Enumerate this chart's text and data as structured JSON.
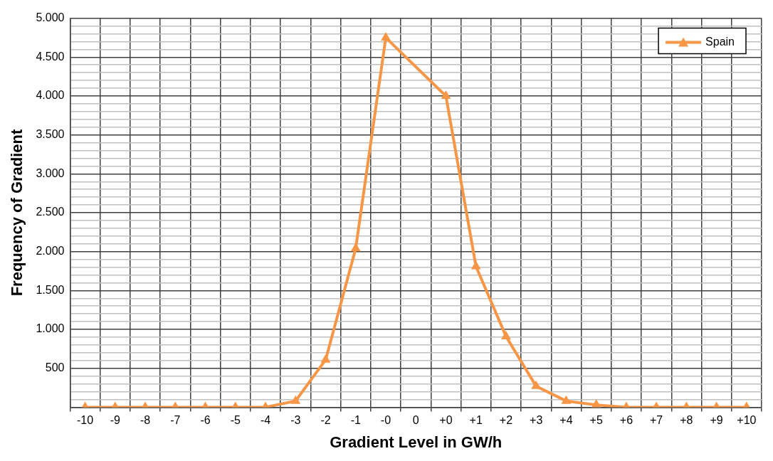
{
  "chart_data": {
    "type": "line",
    "xlabel": "Gradient Level in GW/h",
    "ylabel": "Frequency of Gradient",
    "categories": [
      "-10",
      "-9",
      "-8",
      "-7",
      "-6",
      "-5",
      "-4",
      "-3",
      "-2",
      "-1",
      "-0",
      "0",
      "+0",
      "+1",
      "+2",
      "+3",
      "+4",
      "+5",
      "+6",
      "+7",
      "+8",
      "+9",
      "+10"
    ],
    "series": [
      {
        "name": "Spain",
        "color": "#f79646",
        "values": [
          0,
          0,
          0,
          0,
          0,
          0,
          0,
          80,
          610,
          2040,
          4750,
          null,
          4000,
          1810,
          910,
          270,
          80,
          30,
          0,
          0,
          0,
          0,
          0
        ]
      }
    ],
    "ylim": [
      0,
      5000
    ],
    "yticks": [
      {
        "value": 0,
        "label": null
      },
      {
        "value": 100,
        "label": null
      },
      {
        "value": 200,
        "label": null
      },
      {
        "value": 300,
        "label": null
      },
      {
        "value": 400,
        "label": null
      },
      {
        "value": 500,
        "label": "500"
      },
      {
        "value": 600,
        "label": null
      },
      {
        "value": 700,
        "label": null
      },
      {
        "value": 800,
        "label": null
      },
      {
        "value": 900,
        "label": null
      },
      {
        "value": 1000,
        "label": "1.000"
      },
      {
        "value": 1100,
        "label": null
      },
      {
        "value": 1200,
        "label": null
      },
      {
        "value": 1300,
        "label": null
      },
      {
        "value": 1400,
        "label": null
      },
      {
        "value": 1500,
        "label": "1.500"
      },
      {
        "value": 1600,
        "label": null
      },
      {
        "value": 1700,
        "label": null
      },
      {
        "value": 1800,
        "label": null
      },
      {
        "value": 1900,
        "label": null
      },
      {
        "value": 2000,
        "label": "2.000"
      },
      {
        "value": 2100,
        "label": null
      },
      {
        "value": 2200,
        "label": null
      },
      {
        "value": 2300,
        "label": null
      },
      {
        "value": 2400,
        "label": null
      },
      {
        "value": 2500,
        "label": "2.500"
      },
      {
        "value": 2600,
        "label": null
      },
      {
        "value": 2700,
        "label": null
      },
      {
        "value": 2800,
        "label": null
      },
      {
        "value": 2900,
        "label": null
      },
      {
        "value": 3000,
        "label": "3.000"
      },
      {
        "value": 3100,
        "label": null
      },
      {
        "value": 3200,
        "label": null
      },
      {
        "value": 3300,
        "label": null
      },
      {
        "value": 3400,
        "label": null
      },
      {
        "value": 3500,
        "label": "3.500"
      },
      {
        "value": 3600,
        "label": null
      },
      {
        "value": 3700,
        "label": null
      },
      {
        "value": 3800,
        "label": null
      },
      {
        "value": 3900,
        "label": null
      },
      {
        "value": 4000,
        "label": "4.000"
      },
      {
        "value": 4100,
        "label": null
      },
      {
        "value": 4200,
        "label": null
      },
      {
        "value": 4300,
        "label": null
      },
      {
        "value": 4400,
        "label": null
      },
      {
        "value": 4500,
        "label": "4.500"
      },
      {
        "value": 4600,
        "label": null
      },
      {
        "value": 4700,
        "label": null
      },
      {
        "value": 4800,
        "label": null
      },
      {
        "value": 4900,
        "label": null
      },
      {
        "value": 5000,
        "label": "5.000"
      }
    ],
    "grid": true,
    "legend": "top right",
    "marker": "triangle",
    "line_style": "solid"
  }
}
